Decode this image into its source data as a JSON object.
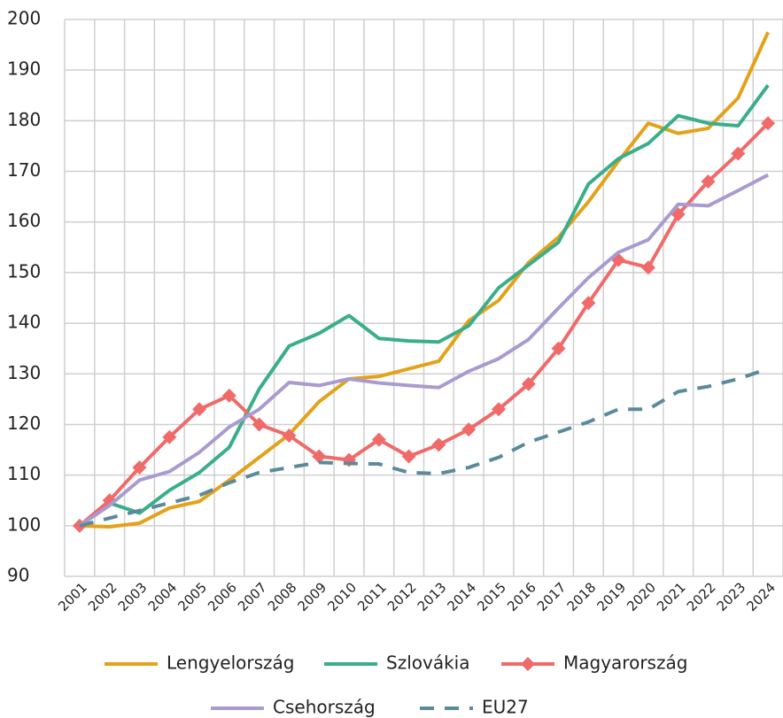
{
  "chart_data": {
    "type": "line",
    "categories": [
      "2001",
      "2002",
      "2003",
      "2004",
      "2005",
      "2006",
      "2007",
      "2008",
      "2009",
      "2010",
      "2011",
      "2012",
      "2013",
      "2014",
      "2015",
      "2016",
      "2017",
      "2018",
      "2019",
      "2020",
      "2021",
      "2022",
      "2023",
      "2024"
    ],
    "series": [
      {
        "name": "Lengyelország",
        "color": "#e3a21a",
        "dashed": false,
        "markers": false,
        "values": [
          100,
          99.8,
          100.5,
          103.5,
          104.8,
          109,
          113.5,
          118,
          124.5,
          129,
          129.5,
          131,
          132.5,
          140.5,
          144.5,
          152,
          157,
          164,
          172,
          179.5,
          177.5,
          178.5,
          184.5,
          197.5
        ]
      },
      {
        "name": "Szlovákia",
        "color": "#3aae8a",
        "dashed": false,
        "markers": false,
        "values": [
          100,
          104.5,
          102.5,
          107,
          110.5,
          115.5,
          127,
          135.5,
          138,
          141.5,
          137,
          136.5,
          136.3,
          139.5,
          147,
          151.5,
          156,
          167.5,
          172.5,
          175.5,
          181,
          179.5,
          179,
          187
        ]
      },
      {
        "name": "Magyarország",
        "color": "#f06a6a",
        "dashed": false,
        "markers": true,
        "values": [
          100,
          105,
          111.5,
          117.5,
          123,
          125.7,
          120,
          117.8,
          113.7,
          113,
          117,
          113.7,
          116,
          119,
          123,
          128,
          135,
          144,
          152.5,
          151,
          161.5,
          168,
          173.5,
          179.5
        ]
      },
      {
        "name": "Csehország",
        "color": "#a99bd0",
        "dashed": false,
        "markers": false,
        "values": [
          100,
          104,
          109,
          110.7,
          114.5,
          119.5,
          123,
          128.3,
          127.7,
          129,
          128.2,
          127.7,
          127.3,
          130.5,
          133,
          136.8,
          143,
          149,
          154,
          156.5,
          163.5,
          163.2,
          166.2,
          169.3
        ]
      },
      {
        "name": "EU27",
        "color": "#5b8a9a",
        "dashed": true,
        "markers": false,
        "values": [
          100,
          101.5,
          103,
          104.5,
          106,
          108.5,
          110.5,
          111.5,
          112.5,
          112.3,
          112.2,
          110.5,
          110.3,
          111.5,
          113.5,
          116.5,
          118.5,
          120.5,
          123,
          123,
          126.5,
          127.5,
          129,
          131
        ]
      }
    ],
    "ylim": [
      90,
      200
    ],
    "yticks": [
      90,
      100,
      110,
      120,
      130,
      140,
      150,
      160,
      170,
      180,
      190,
      200
    ],
    "grid": true,
    "legend": "bottom"
  }
}
